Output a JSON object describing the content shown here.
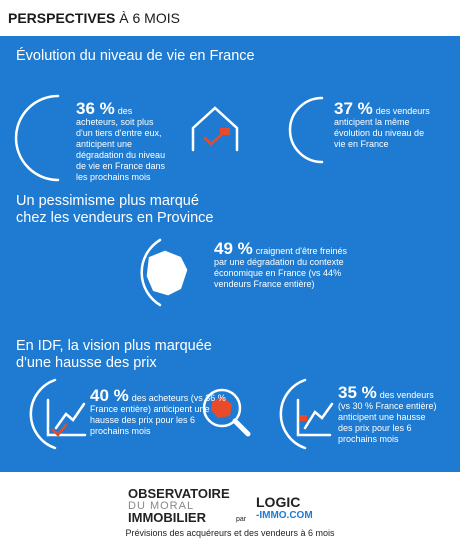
{
  "header": {
    "title_bold": "PERSPECTIVES",
    "title_rest": "À 6 MOIS"
  },
  "sections": [
    {
      "title": "Évolution du niveau de vie en France",
      "stats": [
        {
          "value": "36 %",
          "text": "des acheteurs, soit plus d'un tiers d'entre eux, anticipent une dégradation du niveau de vie en France dans les prochains mois"
        },
        {
          "value": "37 %",
          "text": "des vendeurs anticipent la même évolution du niveau de vie en France"
        }
      ]
    },
    {
      "title": "Un pessimisme plus marqué chez les vendeurs en Province",
      "stats": [
        {
          "value": "49 %",
          "text": "craignent d'être freinés par une dégradation du contexte économique en France (vs 44% vendeurs France entière)"
        }
      ]
    },
    {
      "title": "En IDF, la vision plus marquée d'une hausse des prix",
      "stats": [
        {
          "value": "40 %",
          "text": "des acheteurs (vs 36 % France entière) anticipent une hausse des prix pour les 6 prochains mois"
        },
        {
          "value": "35 %",
          "text": "des vendeurs (vs 30 % France entière) anticipent une hausse des prix pour les 6 prochains mois"
        }
      ]
    }
  ],
  "footer": {
    "logo_line1": "OBSERVATOIRE",
    "logo_line2": "DU MORAL",
    "logo_line3": "IMMOBILIER",
    "by": "par",
    "partner_line1": "LOGIC",
    "partner_line2": "-IMMO.COM",
    "caption": "Prévisions des acquéreurs et des vendeurs à 6 mois"
  }
}
